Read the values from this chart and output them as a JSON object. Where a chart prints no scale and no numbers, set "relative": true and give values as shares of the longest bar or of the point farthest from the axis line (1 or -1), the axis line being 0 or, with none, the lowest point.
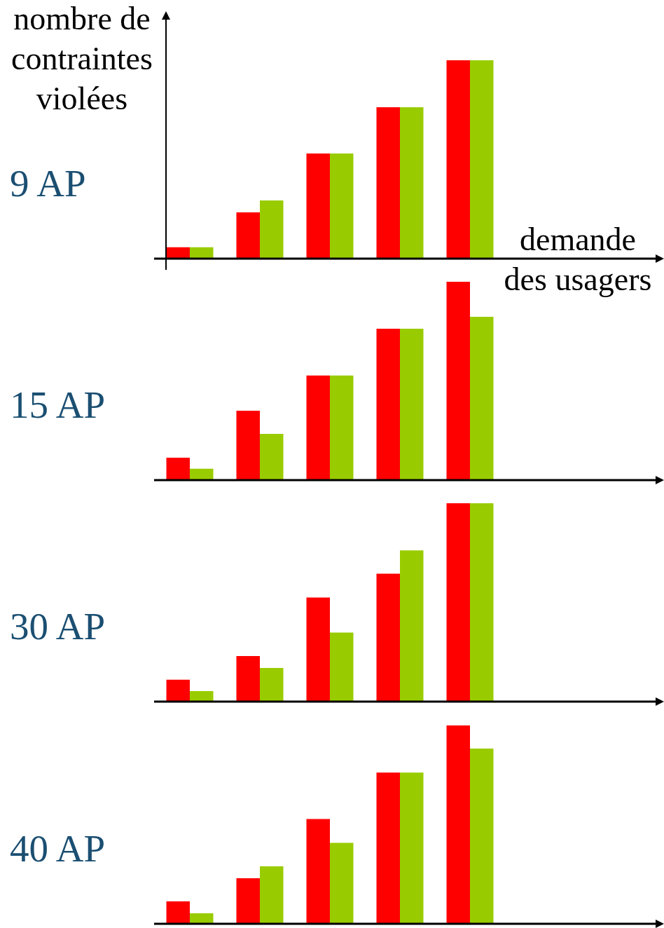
{
  "chart_data": [
    {
      "type": "bar",
      "title": "9 AP",
      "ylabel": "nombre de contraintes violées",
      "xlabel": "demande des usagers",
      "relative": true,
      "categories": [
        null,
        null,
        null,
        null,
        null
      ],
      "series": [
        {
          "color": "#ff0000",
          "values": [
            0.057,
            0.233,
            0.53,
            0.763,
            1
          ]
        },
        {
          "color": "#99cc00",
          "values": [
            0.057,
            0.293,
            0.53,
            0.763,
            1
          ]
        }
      ]
    },
    {
      "type": "bar",
      "title": "15 AP",
      "relative": true,
      "categories": [
        null,
        null,
        null,
        null,
        null
      ],
      "series": [
        {
          "color": "#ff0000",
          "values": [
            0.113,
            0.35,
            0.527,
            0.763,
            1
          ]
        },
        {
          "color": "#99cc00",
          "values": [
            0.057,
            0.233,
            0.527,
            0.763,
            0.823
          ]
        }
      ]
    },
    {
      "type": "bar",
      "title": "30 AP",
      "relative": true,
      "categories": [
        null,
        null,
        null,
        null,
        null
      ],
      "series": [
        {
          "color": "#ff0000",
          "values": [
            0.11,
            0.23,
            0.525,
            0.645,
            1
          ]
        },
        {
          "color": "#99cc00",
          "values": [
            0.053,
            0.17,
            0.348,
            0.762,
            1
          ]
        }
      ]
    },
    {
      "type": "bar",
      "title": "40 AP",
      "relative": true,
      "categories": [
        null,
        null,
        null,
        null,
        null
      ],
      "series": [
        {
          "color": "#ff0000",
          "values": [
            0.113,
            0.23,
            0.528,
            0.762,
            1
          ]
        },
        {
          "color": "#99cc00",
          "values": [
            0.053,
            0.29,
            0.408,
            0.762,
            0.883
          ]
        }
      ]
    }
  ]
}
